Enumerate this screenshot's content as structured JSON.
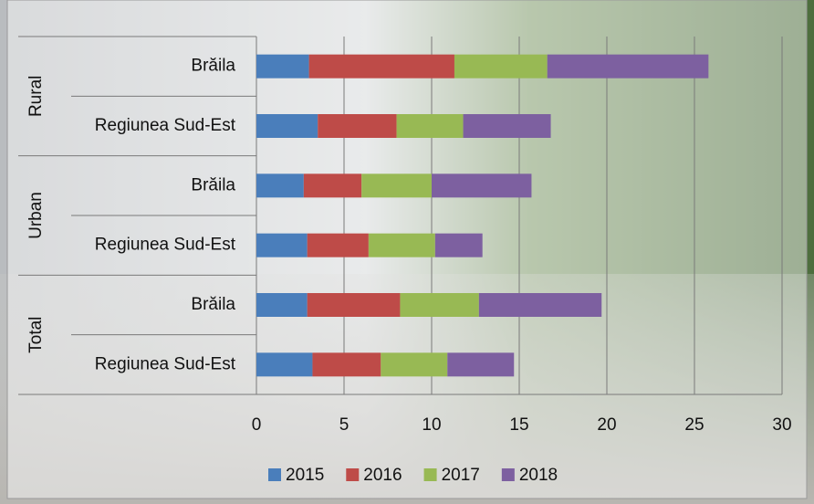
{
  "chart_data": {
    "type": "bar",
    "orientation": "horizontal",
    "stacked": true,
    "groups": [
      "Rural",
      "Urban",
      "Total"
    ],
    "categories": [
      "Brăila",
      "Regiunea Sud-Est",
      "Brăila",
      "Regiunea Sud-Est",
      "Brăila",
      "Regiunea Sud-Est"
    ],
    "series": [
      {
        "name": "2015",
        "color": "#4a7ebb",
        "values": [
          3.0,
          3.5,
          2.7,
          2.9,
          2.9,
          3.2
        ]
      },
      {
        "name": "2016",
        "color": "#be4b48",
        "values": [
          8.3,
          4.5,
          3.3,
          3.5,
          5.3,
          3.9
        ]
      },
      {
        "name": "2017",
        "color": "#98b954",
        "values": [
          5.3,
          3.8,
          4.0,
          3.8,
          4.5,
          3.8
        ]
      },
      {
        "name": "2018",
        "color": "#7d60a0",
        "values": [
          9.2,
          5.0,
          5.7,
          2.7,
          7.0,
          3.8
        ]
      }
    ],
    "xlim": [
      0,
      30
    ],
    "xticks": [
      0,
      5,
      10,
      15,
      20,
      25,
      30
    ],
    "grid": true,
    "legend": "bottom"
  }
}
